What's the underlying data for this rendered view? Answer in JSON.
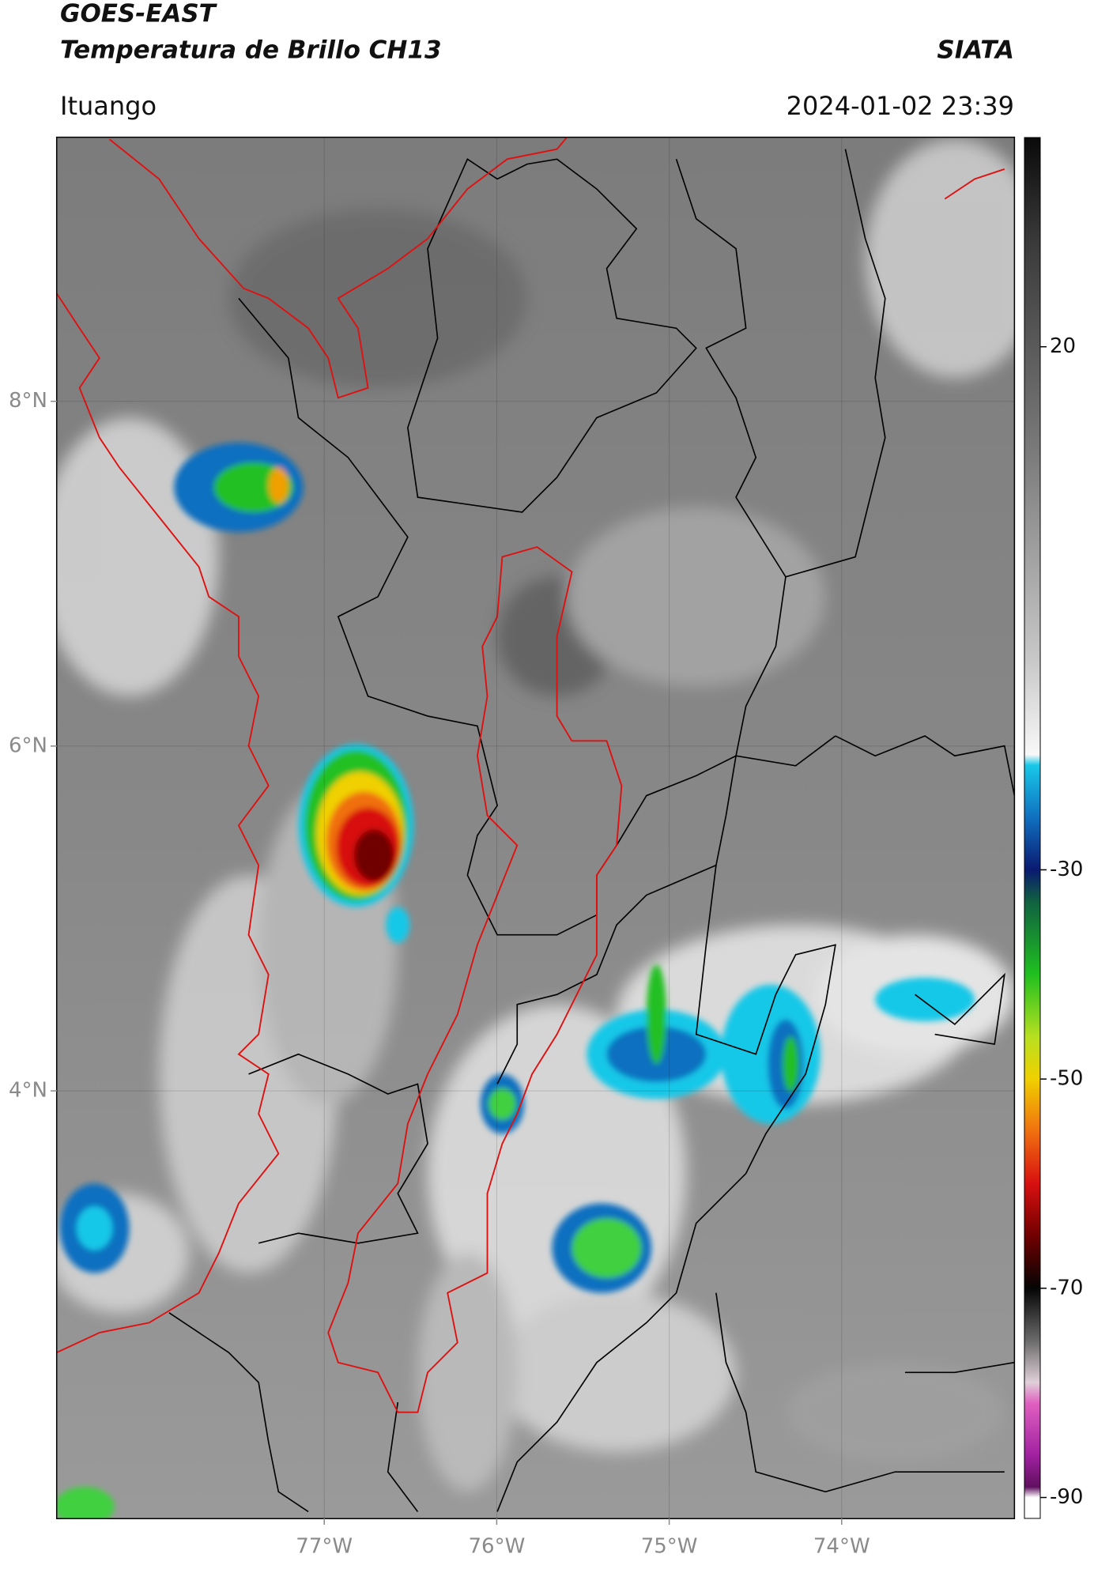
{
  "header": {
    "title": "GOES-EAST",
    "subtitle": "Temperatura de Brillo CH13",
    "source": "SIATA",
    "location": "Ituango",
    "datetime": "2024-01-02 23:39"
  },
  "map": {
    "xlim": [
      -78.55,
      -73.0
    ],
    "ylim": [
      1.52,
      9.53
    ],
    "grid": true,
    "xticks": [
      {
        "value": -77,
        "label": "77°W"
      },
      {
        "value": -76,
        "label": "76°W"
      },
      {
        "value": -75,
        "label": "75°W"
      },
      {
        "value": -74,
        "label": "74°W"
      }
    ],
    "yticks": [
      {
        "value": 8,
        "label": "8°N"
      },
      {
        "value": 6,
        "label": "6°N"
      },
      {
        "value": 4,
        "label": "4°N"
      }
    ]
  },
  "colorbar": {
    "lim": [
      -92,
      40
    ],
    "ticks": [
      20,
      -30,
      -50,
      -70,
      -90
    ],
    "stops": [
      {
        "value": 40,
        "color": "#0a0a0a"
      },
      {
        "value": 30,
        "color": "#3a3a3a"
      },
      {
        "value": 10,
        "color": "#7a7a7a"
      },
      {
        "value": -10,
        "color": "#c8c8c8"
      },
      {
        "value": -19,
        "color": "#f8f8f8"
      },
      {
        "value": -20,
        "color": "#18c8e8"
      },
      {
        "value": -25,
        "color": "#1070c0"
      },
      {
        "value": -30,
        "color": "#0a1a70"
      },
      {
        "value": -33,
        "color": "#106040"
      },
      {
        "value": -40,
        "color": "#20c020"
      },
      {
        "value": -46,
        "color": "#b8e020"
      },
      {
        "value": -50,
        "color": "#f0d000"
      },
      {
        "value": -55,
        "color": "#f07010"
      },
      {
        "value": -60,
        "color": "#d81010"
      },
      {
        "value": -65,
        "color": "#700000"
      },
      {
        "value": -70,
        "color": "#050505"
      },
      {
        "value": -75,
        "color": "#6a6a6a"
      },
      {
        "value": -79,
        "color": "#e0d0d8"
      },
      {
        "value": -81,
        "color": "#e060c0"
      },
      {
        "value": -86,
        "color": "#a020a0"
      },
      {
        "value": -89,
        "color": "#601060"
      },
      {
        "value": -90,
        "color": "#ffffff"
      }
    ]
  }
}
